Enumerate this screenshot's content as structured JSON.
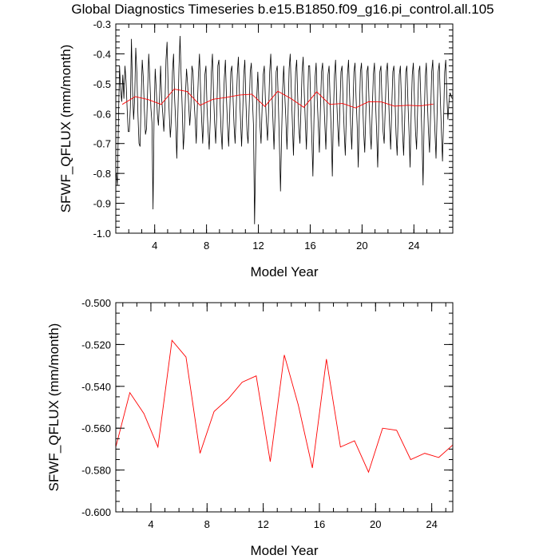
{
  "title": "Global Diagnostics Timeseries b.e15.B1850.f09_g16.pi_control.all.105",
  "colors": {
    "monthly": "#000000",
    "annual": "#ff0000",
    "axis": "#000000"
  },
  "chart_data": [
    {
      "type": "line",
      "xlabel": "Model Year",
      "ylabel": "SFWF_QFLUX (mm/month)",
      "xlim": [
        1,
        27
      ],
      "ylim": [
        -1.0,
        -0.3
      ],
      "xticks": [
        4,
        8,
        12,
        16,
        20,
        24
      ],
      "xtick_labels": [
        "4",
        "8",
        "12",
        "16",
        "20",
        "24"
      ],
      "yticks": [
        -1.0,
        -0.9,
        -0.8,
        -0.7,
        -0.6,
        -0.5,
        -0.4,
        -0.3
      ],
      "ytick_labels": [
        "-1.0",
        "-0.9",
        "-0.8",
        "-0.7",
        "-0.6",
        "-0.5",
        "-0.4",
        "-0.3"
      ],
      "series": [
        {
          "name": "monthly",
          "color": "#000000",
          "x_start": 1.04,
          "x_step": 0.0833333,
          "values": [
            -0.8,
            -0.84,
            -0.62,
            -0.44,
            -0.52,
            -0.56,
            -0.47,
            -0.55,
            -0.44,
            -0.49,
            -0.58,
            -0.66,
            -0.66,
            -0.58,
            -0.35,
            -0.52,
            -0.62,
            -0.55,
            -0.38,
            -0.46,
            -0.6,
            -0.7,
            -0.71,
            -0.55,
            -0.42,
            -0.48,
            -0.59,
            -0.67,
            -0.65,
            -0.52,
            -0.4,
            -0.48,
            -0.58,
            -0.63,
            -0.92,
            -0.6,
            -0.45,
            -0.52,
            -0.6,
            -0.64,
            -0.55,
            -0.44,
            -0.55,
            -0.6,
            -0.66,
            -0.58,
            -0.42,
            -0.36,
            -0.51,
            -0.6,
            -0.68,
            -0.62,
            -0.46,
            -0.4,
            -0.55,
            -0.63,
            -0.75,
            -0.6,
            -0.45,
            -0.34,
            -0.47,
            -0.58,
            -0.72,
            -0.66,
            -0.54,
            -0.45,
            -0.5,
            -0.57,
            -0.64,
            -0.58,
            -0.44,
            -0.46,
            -0.56,
            -0.62,
            -0.7,
            -0.58,
            -0.47,
            -0.4,
            -0.52,
            -0.62,
            -0.7,
            -0.6,
            -0.47,
            -0.44,
            -0.58,
            -0.66,
            -0.72,
            -0.62,
            -0.46,
            -0.4,
            -0.53,
            -0.63,
            -0.7,
            -0.6,
            -0.44,
            -0.42,
            -0.56,
            -0.66,
            -0.72,
            -0.58,
            -0.48,
            -0.42,
            -0.55,
            -0.64,
            -0.71,
            -0.6,
            -0.46,
            -0.44,
            -0.54,
            -0.64,
            -0.7,
            -0.58,
            -0.47,
            -0.41,
            -0.53,
            -0.62,
            -0.71,
            -0.6,
            -0.47,
            -0.42,
            -0.56,
            -0.66,
            -0.7,
            -0.58,
            -0.46,
            -0.43,
            -0.55,
            -0.64,
            -0.97,
            -0.74,
            -0.55,
            -0.46,
            -0.56,
            -0.64,
            -0.7,
            -0.58,
            -0.47,
            -0.44,
            -0.55,
            -0.63,
            -0.69,
            -0.59,
            -0.46,
            -0.4,
            -0.52,
            -0.62,
            -0.72,
            -0.6,
            -0.46,
            -0.44,
            -0.56,
            -0.7,
            -0.86,
            -0.68,
            -0.52,
            -0.44,
            -0.54,
            -0.62,
            -0.72,
            -0.6,
            -0.45,
            -0.4,
            -0.52,
            -0.63,
            -0.74,
            -0.6,
            -0.46,
            -0.42,
            -0.55,
            -0.65,
            -0.7,
            -0.58,
            -0.46,
            -0.41,
            -0.53,
            -0.63,
            -0.72,
            -0.58,
            -0.44,
            -0.44,
            -0.56,
            -0.68,
            -0.81,
            -0.62,
            -0.48,
            -0.43,
            -0.55,
            -0.64,
            -0.73,
            -0.58,
            -0.46,
            -0.43,
            -0.54,
            -0.63,
            -0.72,
            -0.6,
            -0.47,
            -0.44,
            -0.56,
            -0.66,
            -0.81,
            -0.6,
            -0.47,
            -0.42,
            -0.55,
            -0.64,
            -0.71,
            -0.58,
            -0.46,
            -0.44,
            -0.56,
            -0.66,
            -0.74,
            -0.6,
            -0.47,
            -0.42,
            -0.54,
            -0.64,
            -0.72,
            -0.59,
            -0.46,
            -0.43,
            -0.55,
            -0.64,
            -0.78,
            -0.6,
            -0.46,
            -0.43,
            -0.55,
            -0.66,
            -0.73,
            -0.6,
            -0.46,
            -0.44,
            -0.56,
            -0.66,
            -0.72,
            -0.58,
            -0.47,
            -0.43,
            -0.56,
            -0.66,
            -0.78,
            -0.62,
            -0.46,
            -0.44,
            -0.56,
            -0.66,
            -0.7,
            -0.58,
            -0.46,
            -0.43,
            -0.54,
            -0.64,
            -0.72,
            -0.58,
            -0.46,
            -0.44,
            -0.55,
            -0.67,
            -0.74,
            -0.6,
            -0.47,
            -0.44,
            -0.56,
            -0.66,
            -0.74,
            -0.62,
            -0.46,
            -0.44,
            -0.56,
            -0.66,
            -0.78,
            -0.6,
            -0.47,
            -0.43,
            -0.55,
            -0.66,
            -0.72,
            -0.58,
            -0.46,
            -0.44,
            -0.56,
            -0.68,
            -0.84,
            -0.62,
            -0.48,
            -0.43,
            -0.56,
            -0.66,
            -0.73,
            -0.6,
            -0.46,
            -0.42,
            -0.56,
            -0.66,
            -0.75,
            -0.6,
            -0.46,
            -0.43,
            -0.55,
            -0.66,
            -0.76,
            -0.62,
            -0.46,
            -0.42,
            -0.54,
            -0.62,
            -0.56,
            -0.53,
            -0.54,
            -0.55
          ]
        },
        {
          "name": "annual",
          "color": "#ff0000",
          "x": [
            1.5,
            2.5,
            3.5,
            4.5,
            5.5,
            6.5,
            7.5,
            8.5,
            9.5,
            10.5,
            11.5,
            12.5,
            13.5,
            14.5,
            15.5,
            16.5,
            17.5,
            18.5,
            19.5,
            20.5,
            21.5,
            22.5,
            23.5,
            24.5,
            25.5
          ],
          "values": [
            -0.569,
            -0.543,
            -0.553,
            -0.569,
            -0.518,
            -0.526,
            -0.572,
            -0.552,
            -0.546,
            -0.538,
            -0.535,
            -0.576,
            -0.525,
            -0.549,
            -0.579,
            -0.527,
            -0.569,
            -0.566,
            -0.581,
            -0.56,
            -0.561,
            -0.575,
            -0.572,
            -0.574,
            -0.568
          ]
        }
      ]
    },
    {
      "type": "line",
      "xlabel": "Model Year",
      "ylabel": "SFWF_QFLUX (mm/month)",
      "xlim": [
        1.5,
        25.5
      ],
      "ylim": [
        -0.6,
        -0.5
      ],
      "xticks": [
        4,
        8,
        12,
        16,
        20,
        24
      ],
      "xtick_labels": [
        "4",
        "8",
        "12",
        "16",
        "20",
        "24"
      ],
      "yticks": [
        -0.6,
        -0.58,
        -0.56,
        -0.54,
        -0.52,
        -0.5
      ],
      "ytick_labels": [
        "-0.600",
        "-0.580",
        "-0.560",
        "-0.540",
        "-0.520",
        "-0.500"
      ],
      "series": [
        {
          "name": "annual",
          "color": "#ff0000",
          "x": [
            1.5,
            2.5,
            3.5,
            4.5,
            5.5,
            6.5,
            7.5,
            8.5,
            9.5,
            10.5,
            11.5,
            12.5,
            13.5,
            14.5,
            15.5,
            16.5,
            17.5,
            18.5,
            19.5,
            20.5,
            21.5,
            22.5,
            23.5,
            24.5,
            25.5
          ],
          "values": [
            -0.569,
            -0.543,
            -0.553,
            -0.569,
            -0.518,
            -0.526,
            -0.572,
            -0.552,
            -0.546,
            -0.538,
            -0.535,
            -0.576,
            -0.525,
            -0.549,
            -0.579,
            -0.527,
            -0.569,
            -0.566,
            -0.581,
            -0.56,
            -0.561,
            -0.575,
            -0.572,
            -0.574,
            -0.568
          ]
        }
      ]
    }
  ]
}
